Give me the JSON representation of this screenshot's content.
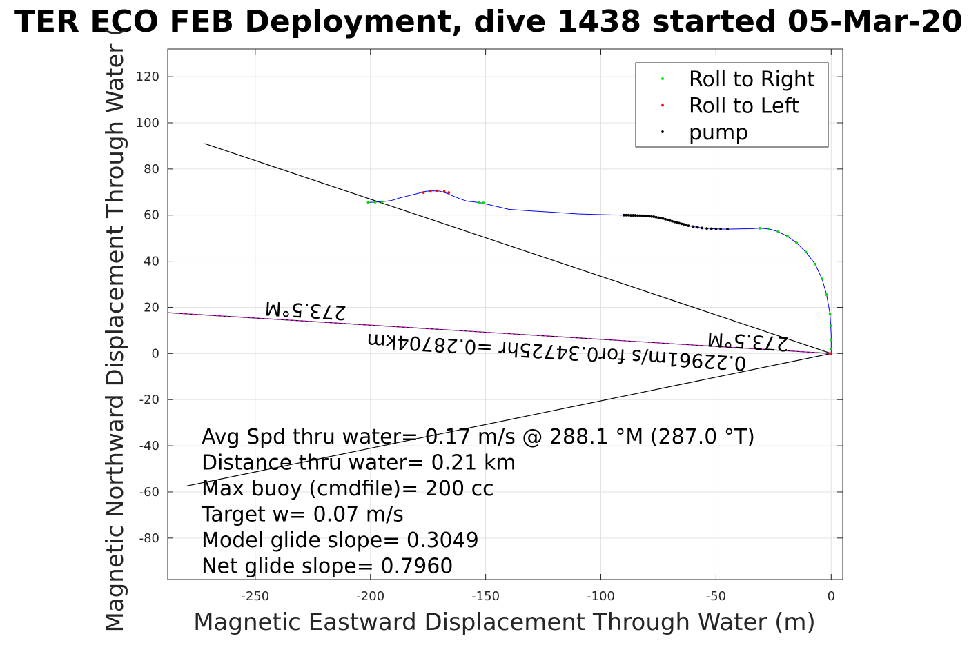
{
  "chart_data": {
    "type": "line",
    "title": "TER ECO FEB Deployment, dive 1438 started 05-Mar-20",
    "xlabel": "Magnetic Eastward Displacement Through Water (m)",
    "ylabel": "Magnetic Northward Displacement Through Water (",
    "xlim": [
      -288,
      5
    ],
    "ylim": [
      -98,
      132
    ],
    "xticks": [
      -250,
      -200,
      -150,
      -100,
      -50,
      0
    ],
    "yticks": [
      -80,
      -60,
      -40,
      -20,
      0,
      20,
      40,
      60,
      80,
      100,
      120
    ],
    "grid": true,
    "legend_position": "top-right",
    "legend": [
      {
        "label": "Roll to Right",
        "color": "#00e000"
      },
      {
        "label": "Roll to Left",
        "color": "#ff0000"
      },
      {
        "label": "pump",
        "color": "#000000"
      }
    ],
    "series": [
      {
        "color": "#0000ff",
        "x": [
          -201,
          -195,
          -191,
          -187,
          -183,
          -179,
          -176,
          -173,
          -170,
          -167,
          -164,
          -161,
          -158,
          -155,
          -152,
          -145,
          -140,
          -130,
          -120,
          -110,
          -100,
          -90,
          -85,
          -80,
          -75,
          -72,
          -68,
          -64,
          -60,
          -55,
          -50,
          -45,
          -40,
          -35,
          -31,
          -27,
          -23,
          -19,
          -15,
          -11,
          -7,
          -4,
          -2,
          -0.5,
          0,
          0
        ],
        "y": [
          65.5,
          65.8,
          66.3,
          67.5,
          68.5,
          69.5,
          70.3,
          70.5,
          70.4,
          69.5,
          68.2,
          67,
          66,
          65.7,
          65.3,
          63.7,
          62.5,
          61.8,
          61.2,
          60.5,
          60.2,
          60,
          59.9,
          59.6,
          59,
          58.2,
          57,
          56,
          55,
          54.3,
          54,
          53.9,
          54,
          54.1,
          54.3,
          54,
          52.8,
          50.8,
          47.9,
          44,
          38.8,
          32.4,
          25.5,
          17,
          8,
          0
        ]
      },
      {
        "name": "Roll to Right",
        "color": "#00e000",
        "x": [
          -201,
          -198,
          -195,
          -153,
          -151,
          -31,
          -27,
          -23,
          -19,
          -15,
          -11,
          -7,
          -4,
          -2,
          -0.5,
          0,
          0,
          0
        ],
        "y": [
          65.5,
          65.6,
          65.8,
          65.5,
          65.3,
          54.3,
          54,
          52.8,
          50.8,
          47.9,
          44,
          38.8,
          32.4,
          25.5,
          17,
          12,
          6,
          2
        ]
      },
      {
        "name": "Roll to Left",
        "color": "#ff0000",
        "x": [
          -177,
          -174,
          -171,
          -168,
          -166,
          0
        ],
        "y": [
          69.8,
          70.3,
          70.5,
          70.2,
          69.8,
          0
        ]
      },
      {
        "name": "pump",
        "color": "#000000",
        "x": [
          -90,
          -89,
          -88,
          -87,
          -86,
          -85,
          -84,
          -83,
          -82,
          -81,
          -80,
          -79,
          -78,
          -77,
          -76,
          -75,
          -74,
          -73,
          -72,
          -71,
          -70,
          -69,
          -68,
          -67,
          -66,
          -65,
          -64,
          -63,
          -62,
          -60,
          -58,
          -56,
          -54,
          -52,
          -50,
          -48,
          -45
        ],
        "y": [
          60,
          60,
          60,
          59.9,
          59.9,
          59.9,
          59.8,
          59.8,
          59.7,
          59.7,
          59.6,
          59.5,
          59.4,
          59.3,
          59.1,
          58.9,
          58.7,
          58.5,
          58.2,
          57.9,
          57.6,
          57.3,
          57,
          56.7,
          56.5,
          56.2,
          56,
          55.7,
          55.4,
          55,
          54.7,
          54.4,
          54.2,
          54.1,
          54,
          54,
          53.9
        ]
      }
    ],
    "reference_lines": [
      {
        "color": "#000000",
        "x": [
          -272,
          0
        ],
        "y": [
          91,
          0
        ]
      },
      {
        "color": "#000000",
        "x": [
          -280,
          0
        ],
        "y": [
          -57.5,
          0
        ]
      },
      {
        "color": "#000000",
        "x": [
          -288,
          0
        ],
        "y": [
          17.7,
          0
        ]
      },
      {
        "color": "#ff00ff",
        "x": [
          -288,
          0
        ],
        "y": [
          17.7,
          0
        ]
      }
    ],
    "annotations": [
      {
        "text": "273.5°M",
        "x": -228,
        "y": 21.5,
        "rotation": 183.5
      },
      {
        "text": "273.5°M",
        "x": -36,
        "y": 8,
        "rotation": 183.5
      },
      {
        "text": "0.22961m/s for0.34725hr =0.28704km",
        "x": -119,
        "y": 3.5,
        "rotation": 183.5
      }
    ],
    "text_box": [
      "Avg Spd thru water=  0.17 m/s @ 288.1 °M (287.0 °T)",
      "Distance thru water=  0.21 km",
      "Max buoy (cmdfile)= 200 cc",
      "Target w= 0.07 m/s",
      "Model glide slope= 0.3049",
      "Net glide slope= 0.7960"
    ]
  }
}
